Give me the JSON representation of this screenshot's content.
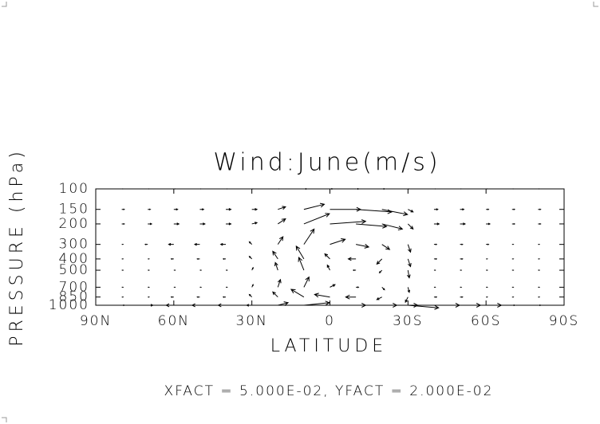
{
  "chart_data": {
    "type": "quiver",
    "title": "Wind:June(m/s)",
    "x_label": "LATITUDE",
    "y_label": "PRESSURE (hPa)",
    "footnote": "XFACT = 5.000E-02, YFACT = 2.000E-02",
    "xlim": [
      90,
      -90
    ],
    "xticks": [
      {
        "value": 90,
        "label": "90N"
      },
      {
        "value": 60,
        "label": "60N"
      },
      {
        "value": 30,
        "label": "30N"
      },
      0,
      {
        "value": -30,
        "label": "30S"
      },
      {
        "value": -60,
        "label": "60S"
      },
      {
        "value": -90,
        "label": "90S"
      }
    ],
    "ylim": [
      1000,
      100
    ],
    "yticks": [
      100,
      150,
      200,
      300,
      400,
      500,
      700,
      850,
      1000
    ],
    "log_y": true,
    "color": "#000000",
    "x": [
      80,
      70,
      60,
      50,
      40,
      30,
      20,
      10,
      0,
      -10,
      -20,
      -30,
      -40,
      -50,
      -60,
      -70,
      -80
    ],
    "levels": [
      100,
      150,
      200,
      300,
      400,
      500,
      700,
      850,
      1000
    ],
    "u": [
      [
        0.5,
        0.5,
        0.5,
        0.5,
        0.5,
        0.5,
        0.5,
        1,
        1,
        1,
        1,
        0.5,
        0.5,
        0.5,
        0.5,
        0.5,
        0.5
      ],
      [
        1,
        1,
        1.5,
        1.5,
        2,
        2,
        3,
        8,
        12,
        14,
        10,
        2,
        1.5,
        1.5,
        1,
        1,
        1
      ],
      [
        1,
        1.5,
        2,
        2,
        2,
        2,
        3,
        10,
        14,
        12,
        8,
        2,
        2,
        2,
        1.5,
        1,
        1
      ],
      [
        0.5,
        -1,
        -2,
        -2,
        -2,
        -1,
        2,
        4,
        6,
        5,
        3,
        1,
        1,
        1,
        1,
        0.5,
        0.5
      ],
      [
        0.5,
        0.5,
        -1,
        -1,
        -1,
        -1,
        -2,
        -3,
        -2,
        -3,
        -2,
        1,
        1,
        1,
        0.5,
        0.5,
        0.5
      ],
      [
        0.5,
        0.5,
        0.5,
        0.5,
        0.5,
        0.5,
        -1,
        -2,
        -1,
        -1,
        -1,
        0.5,
        0.5,
        0.5,
        0.5,
        0.5,
        0.5
      ],
      [
        0.5,
        0.5,
        0.5,
        0.5,
        0.5,
        0.5,
        1,
        2,
        2,
        1,
        1,
        0.5,
        0.5,
        0.5,
        0.5,
        0.5,
        0.5
      ],
      [
        0.5,
        0.5,
        -1,
        -1,
        -1,
        -1,
        -2,
        -5,
        -6,
        -4,
        -2,
        -1,
        1,
        1,
        0.5,
        0.5,
        0.5
      ],
      [
        1,
        2,
        -3,
        -3,
        -3,
        -2,
        4,
        10,
        14,
        16,
        14,
        12,
        10,
        8,
        6,
        1,
        1
      ]
    ],
    "v": [
      [
        0,
        0,
        0,
        0,
        0,
        0,
        0,
        0,
        0,
        0,
        0,
        0,
        0,
        0,
        0,
        0,
        0
      ],
      [
        0,
        0,
        0,
        0,
        0,
        0,
        1,
        2,
        0,
        -1,
        -2,
        -1,
        0,
        0,
        0,
        0,
        0
      ],
      [
        0,
        0,
        0,
        0,
        0,
        0.5,
        2,
        4,
        1,
        -1,
        -2,
        -2,
        0,
        0,
        0,
        0,
        0
      ],
      [
        0,
        0,
        0,
        0,
        0,
        1,
        3,
        6,
        2,
        -1,
        -2,
        -3,
        0,
        0,
        0,
        0,
        0
      ],
      [
        0,
        0,
        0,
        0,
        0,
        1,
        3,
        5,
        2,
        0,
        -2,
        -3,
        0,
        0,
        0,
        0,
        0
      ],
      [
        0,
        0,
        0,
        0,
        0,
        1,
        3,
        5,
        2,
        0,
        -1,
        -3,
        0,
        0,
        0,
        0,
        0
      ],
      [
        0,
        0,
        0,
        0,
        0,
        1,
        3,
        4,
        1,
        0,
        -1,
        -2,
        0,
        0,
        0,
        0,
        0
      ],
      [
        0,
        0,
        0,
        0,
        0,
        1,
        2,
        3,
        1,
        0,
        -1,
        -2,
        0,
        0,
        0,
        0,
        0
      ],
      [
        0,
        0,
        0,
        0,
        0,
        0,
        1,
        1,
        0,
        0,
        0,
        -1,
        0,
        0,
        0,
        0,
        0
      ]
    ]
  }
}
